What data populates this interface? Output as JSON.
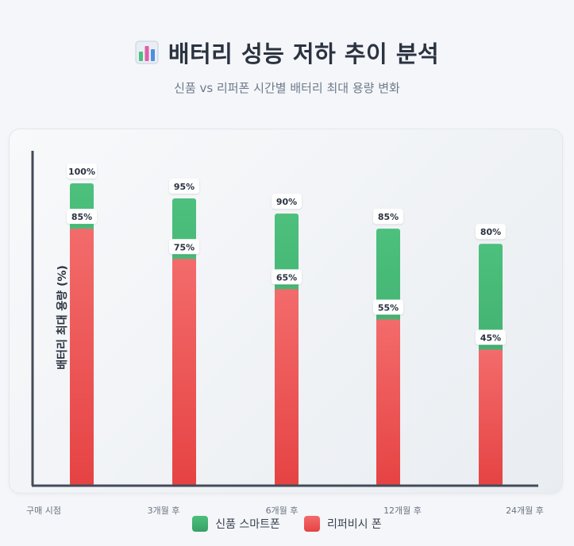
{
  "title": "배터리 성능 저하 추이 분석",
  "title_icon": "bar-chart-icon",
  "subtitle": "신품 vs 리퍼폰 시간별 배터리 최대 용량 변화",
  "colors": {
    "new_top": "#4cc07c",
    "new_bottom": "#38a066",
    "refurb_top": "#f36b6b",
    "refurb_bottom": "#e64343"
  },
  "chart_data": {
    "type": "bar",
    "categories": [
      "구매 시점",
      "3개월 후",
      "6개월 후",
      "12개월 후",
      "24개월 후"
    ],
    "ylabel": "배터리 최대 용량 (%)",
    "xlabel": "",
    "ylim": [
      0,
      100
    ],
    "grid": false,
    "legend_position": "bottom",
    "series": [
      {
        "name": "신품 스마트폰",
        "values": [
          100,
          95,
          90,
          85,
          80
        ],
        "labels": [
          "100%",
          "95%",
          "90%",
          "85%",
          "80%"
        ],
        "color": "#45b573"
      },
      {
        "name": "리퍼비시 폰",
        "values": [
          85,
          75,
          65,
          55,
          45
        ],
        "labels": [
          "85%",
          "75%",
          "65%",
          "55%",
          "45%"
        ],
        "color": "#ec5454"
      }
    ]
  }
}
